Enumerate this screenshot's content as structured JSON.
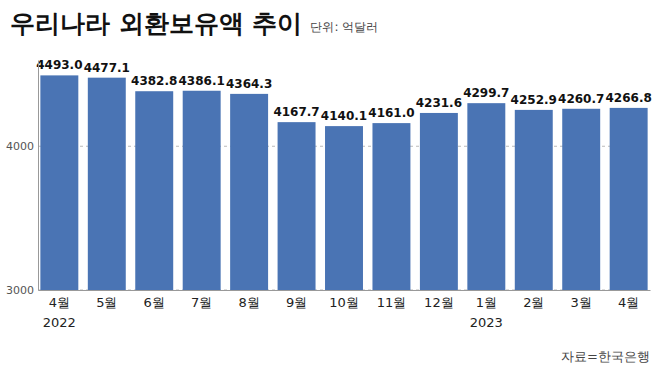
{
  "chart_data": {
    "type": "bar",
    "title": "우리나라 외환보유액 추이",
    "subtitle": "단위: 억달러",
    "source": "자료=한국은행",
    "categories": [
      "4월\n2022",
      "5월",
      "6월",
      "7월",
      "8월",
      "9월",
      "10월",
      "11월",
      "12월",
      "1월\n2023",
      "2월",
      "3월",
      "4월"
    ],
    "values": [
      4493.0,
      4477.1,
      4382.8,
      4386.1,
      4364.3,
      4167.7,
      4140.1,
      4161.0,
      4231.6,
      4299.7,
      4252.9,
      4260.7,
      4266.8
    ],
    "value_labels": [
      "4493.0",
      "4477.1",
      "4382.8",
      "4386.1",
      "4364.3",
      "4167.7",
      "4140.1",
      "4161.0",
      "4231.6",
      "4299.7",
      "4252.9",
      "4260.7",
      "4266.8"
    ],
    "color": "#4a74b4",
    "ylim": [
      3000,
      4600
    ],
    "yticks": [
      3000,
      4000
    ],
    "grid": true,
    "data_labels": true
  }
}
